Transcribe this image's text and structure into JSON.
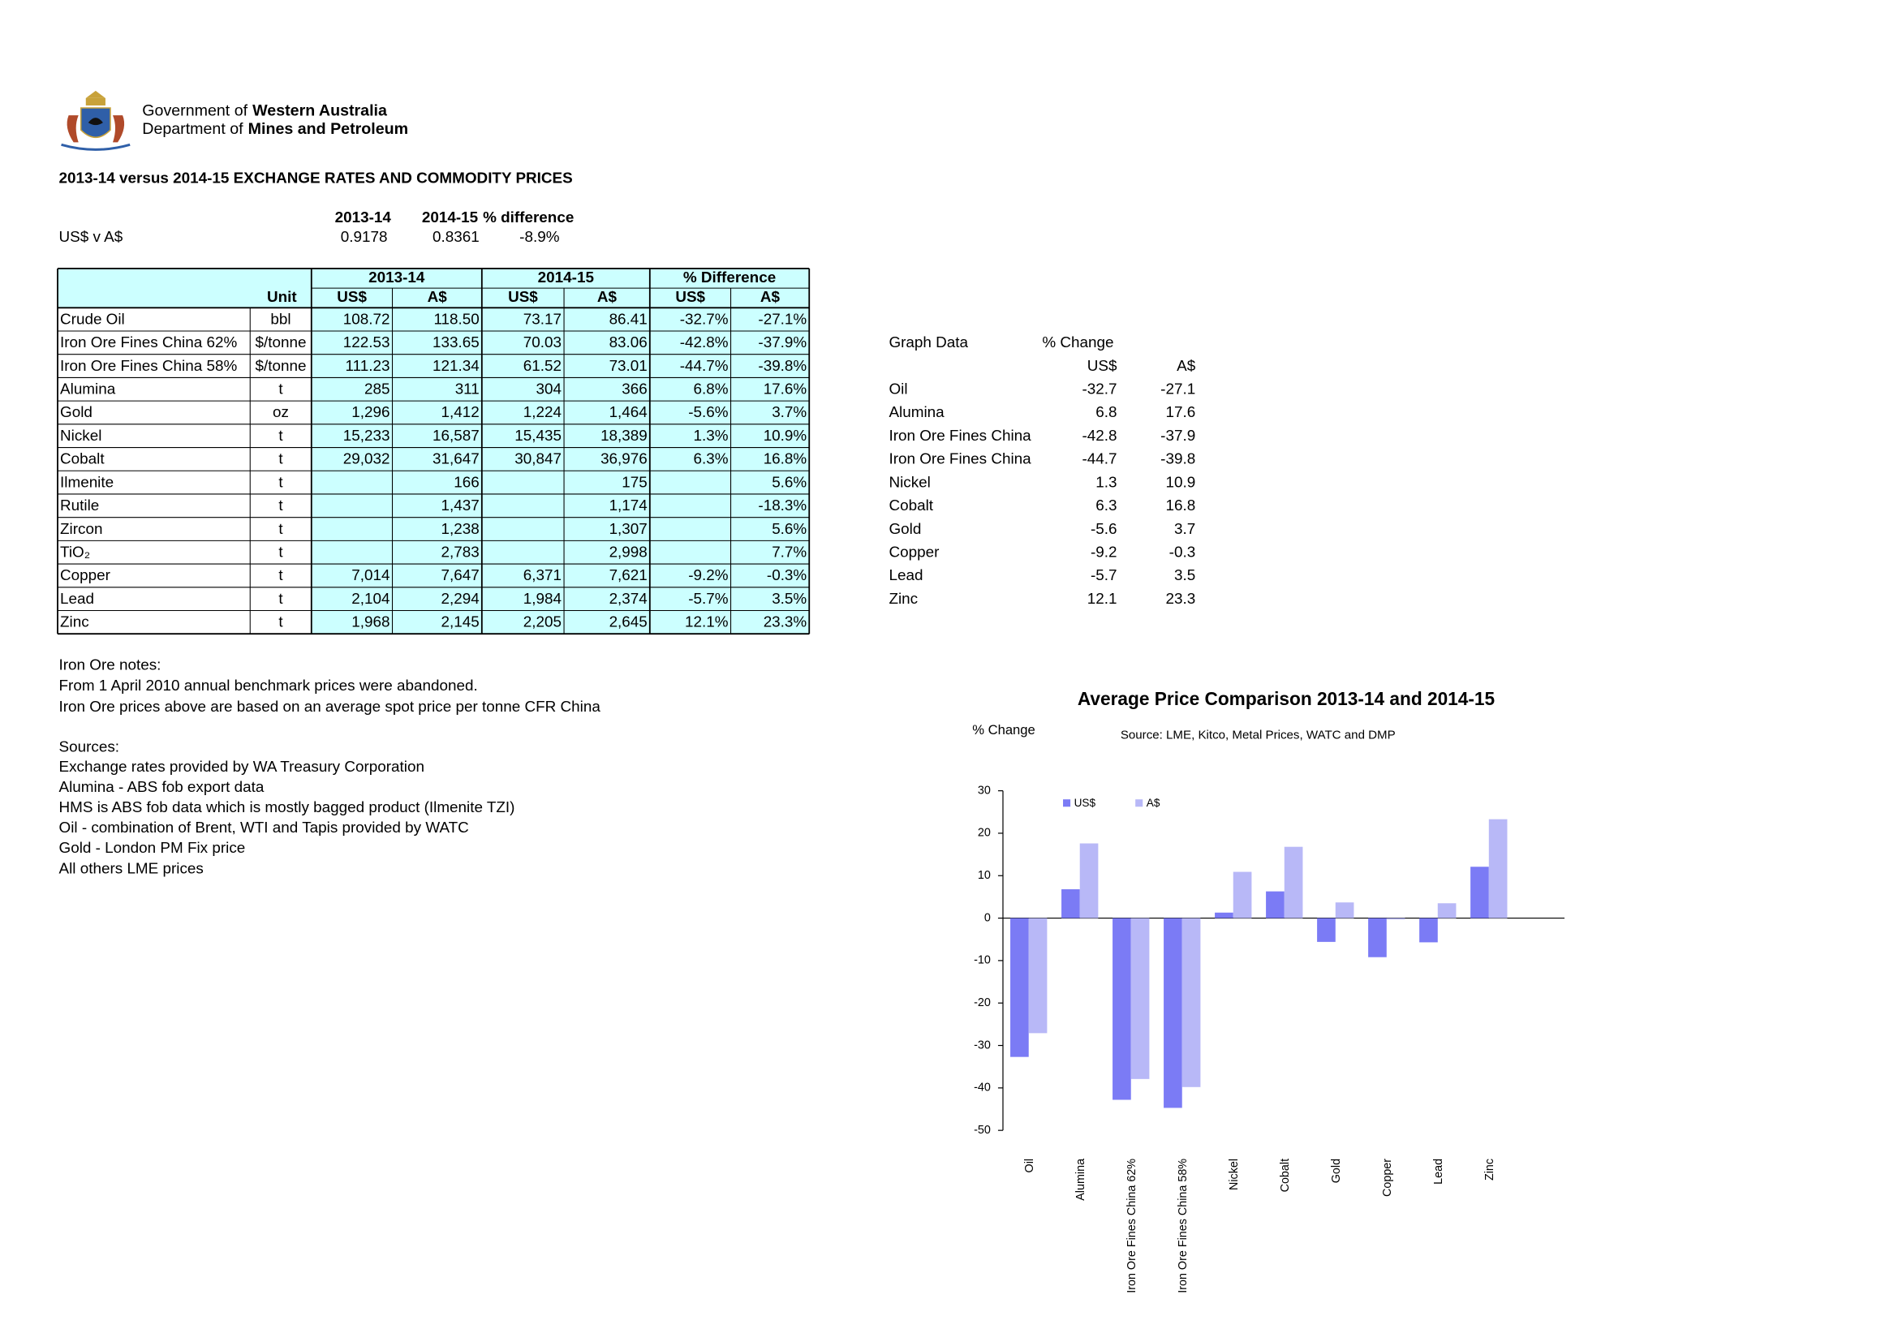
{
  "header": {
    "gov_prefix": "Government of",
    "gov_name": "Western Australia",
    "dept_prefix": "Department of",
    "dept_name": "Mines and Petroleum"
  },
  "title": "2013-14 versus 2014-15 EXCHANGE RATES AND COMMODITY PRICES",
  "exchange": {
    "headers": [
      "2013-14",
      "2014-15",
      "% difference"
    ],
    "label": "US$ v A$",
    "values": [
      "0.9178",
      "0.8361",
      "-8.9%"
    ]
  },
  "table": {
    "group_headers": [
      "2013-14",
      "2014-15",
      "% Difference"
    ],
    "columns": [
      "Unit",
      "US$",
      "A$",
      "US$",
      "A$",
      "US$",
      "A$"
    ],
    "rows": [
      [
        "Crude Oil",
        "bbl",
        "108.72",
        "118.50",
        "73.17",
        "86.41",
        "-32.7%",
        "-27.1%"
      ],
      [
        "Iron Ore Fines China 62%",
        "$/tonne",
        "122.53",
        "133.65",
        "70.03",
        "83.06",
        "-42.8%",
        "-37.9%"
      ],
      [
        "Iron Ore Fines China 58%",
        "$/tonne",
        "111.23",
        "121.34",
        "61.52",
        "73.01",
        "-44.7%",
        "-39.8%"
      ],
      [
        "Alumina",
        "t",
        "285",
        "311",
        "304",
        "366",
        "6.8%",
        "17.6%"
      ],
      [
        "Gold",
        "oz",
        "1,296",
        "1,412",
        "1,224",
        "1,464",
        "-5.6%",
        "3.7%"
      ],
      [
        "Nickel",
        "t",
        "15,233",
        "16,587",
        "15,435",
        "18,389",
        "1.3%",
        "10.9%"
      ],
      [
        "Cobalt",
        "t",
        "29,032",
        "31,647",
        "30,847",
        "36,976",
        "6.3%",
        "16.8%"
      ],
      [
        "Ilmenite",
        "t",
        null,
        "166",
        null,
        "175",
        null,
        "5.6%"
      ],
      [
        "Rutile",
        "t",
        null,
        "1,437",
        null,
        "1,174",
        null,
        "-18.3%"
      ],
      [
        "Zircon",
        "t",
        null,
        "1,238",
        null,
        "1,307",
        null,
        "5.6%"
      ],
      [
        "TiO₂",
        "t",
        null,
        "2,783",
        null,
        "2,998",
        null,
        "7.7%"
      ],
      [
        "Copper",
        "t",
        "7,014",
        "7,647",
        "6,371",
        "7,621",
        "-9.2%",
        "-0.3%"
      ],
      [
        "Lead",
        "t",
        "2,104",
        "2,294",
        "1,984",
        "2,374",
        "-5.7%",
        "3.5%"
      ],
      [
        "Zinc",
        "t",
        "1,968",
        "2,145",
        "2,205",
        "2,645",
        "12.1%",
        "23.3%"
      ]
    ]
  },
  "notes": {
    "heading": "Iron Ore notes:",
    "lines": [
      "From 1 April 2010 annual benchmark prices were abandoned.",
      "Iron Ore prices above are based on an average spot price per tonne CFR China"
    ]
  },
  "sources": {
    "heading": "Sources:",
    "lines": [
      "Exchange rates provided by WA Treasury Corporation",
      "Alumina  - ABS fob export data",
      "HMS is ABS fob data which is mostly bagged product (Ilmenite TZI)",
      "Oil - combination of Brent, WTI and Tapis provided by WATC",
      "Gold - London PM Fix price",
      "All others LME prices"
    ]
  },
  "graph_data": {
    "title": "Graph Data",
    "subtitle": "% Change",
    "columns": [
      "US$",
      "A$"
    ],
    "rows": [
      [
        "Oil",
        "-32.7",
        "-27.1"
      ],
      [
        "Alumina",
        "6.8",
        "17.6"
      ],
      [
        "Iron Ore Fines China",
        "-42.8",
        "-37.9"
      ],
      [
        "Iron Ore Fines China",
        "-44.7",
        "-39.8"
      ],
      [
        "Nickel",
        "1.3",
        "10.9"
      ],
      [
        "Cobalt",
        "6.3",
        "16.8"
      ],
      [
        "Gold",
        "-5.6",
        "3.7"
      ],
      [
        "Copper",
        "-9.2",
        "-0.3"
      ],
      [
        "Lead",
        "-5.7",
        "3.5"
      ],
      [
        "Zinc",
        "12.1",
        "23.3"
      ]
    ]
  },
  "chart_data": {
    "type": "bar",
    "title": "Average Price Comparison 2013-14 and 2014-15",
    "subtitle": "Source: LME, Kitco, Metal Prices, WATC and DMP",
    "y_label": "% Change",
    "categories": [
      "Oil",
      "Alumina",
      "Iron Ore Fines China 62%",
      "Iron Ore Fines China 58%",
      "Nickel",
      "Cobalt",
      "Gold",
      "Copper",
      "Lead",
      "Zinc"
    ],
    "series": [
      {
        "name": "US$",
        "color": "#7b7bf5",
        "values": [
          -32.7,
          6.8,
          -42.8,
          -44.7,
          1.3,
          6.3,
          -5.6,
          -9.2,
          -5.7,
          12.1
        ]
      },
      {
        "name": "A$",
        "color": "#b8b8f7",
        "values": [
          -27.1,
          17.6,
          -37.9,
          -39.8,
          10.9,
          16.8,
          3.7,
          -0.3,
          3.5,
          23.3
        ]
      }
    ],
    "ylim": [
      -50,
      30
    ],
    "yticks": [
      -50,
      -40,
      -30,
      -20,
      -10,
      0,
      10,
      20,
      30
    ],
    "legend": "top-left",
    "grid": false
  }
}
